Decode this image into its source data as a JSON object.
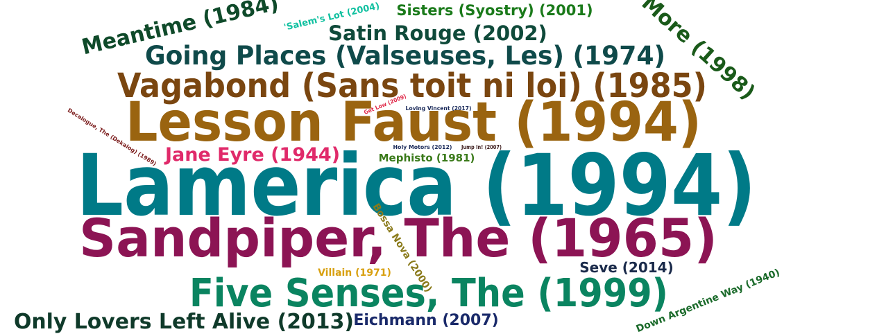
{
  "chart_data": {
    "type": "wordcloud",
    "words": [
      {
        "text": "Lamerica (1994)",
        "color": "#007a87"
      },
      {
        "text": "Lesson Faust (1994)",
        "color": "#9a6410"
      },
      {
        "text": "Sandpiper, The (1965)",
        "color": "#8c1454"
      },
      {
        "text": "Vagabond (Sans toit ni loi) (1985)",
        "color": "#7a4610"
      },
      {
        "text": "Five Senses, The (1999)",
        "color": "#0a8460"
      },
      {
        "text": "Going Places (Valseuses, Les) (1974)",
        "color": "#0f4a4a"
      },
      {
        "text": "Only Lovers Left Alive (2013)",
        "color": "#0f3a2a"
      },
      {
        "text": "Meantime (1984)",
        "color": "#0f4a2a"
      },
      {
        "text": "More (1998)",
        "color": "#1a5a1a"
      },
      {
        "text": "Satin Rouge (2002)",
        "color": "#0f4a3a"
      },
      {
        "text": "Jane Eyre (1944)",
        "color": "#e02a6a"
      },
      {
        "text": "Sisters (Syostry) (2001)",
        "color": "#1a7a1a"
      },
      {
        "text": "Eichmann (2007)",
        "color": "#1a2a6a"
      },
      {
        "text": "Seve (2014)",
        "color": "#1a2a4a"
      },
      {
        "text": "Mephisto (1981)",
        "color": "#3a7a1a"
      },
      {
        "text": "Down Argentine Way (1940)",
        "color": "#1a6a2a"
      },
      {
        "text": "Bossa Nova (2000)",
        "color": "#8a7a1a"
      },
      {
        "text": "Villain (1971)",
        "color": "#d8a010"
      },
      {
        "text": "'Salem's Lot (2004)",
        "color": "#10c0a0"
      },
      {
        "text": "Loving Vincent (2017)",
        "color": "#1a2a5a"
      },
      {
        "text": "Holy Motors (2012)",
        "color": "#1a2a5a"
      },
      {
        "text": "Jump In! (2007)",
        "color": "#3a1a1a"
      },
      {
        "text": "Get Low (2009)",
        "color": "#e02a4a"
      },
      {
        "text": "Decalogue, The (Dekalog) (1989)",
        "color": "#7a1a1a"
      }
    ]
  }
}
